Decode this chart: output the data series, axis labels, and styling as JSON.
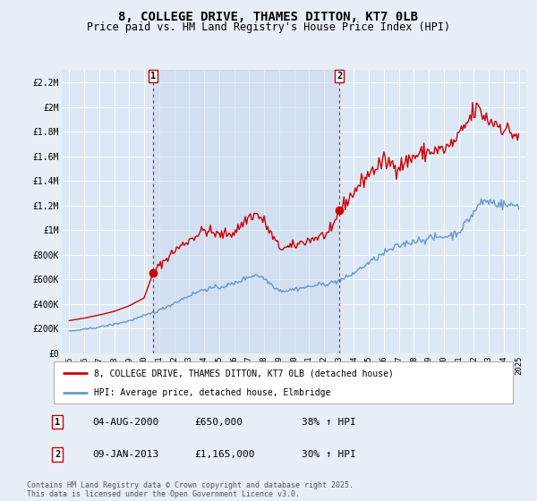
{
  "title": "8, COLLEGE DRIVE, THAMES DITTON, KT7 0LB",
  "subtitle": "Price paid vs. HM Land Registry's House Price Index (HPI)",
  "title_fontsize": 10,
  "subtitle_fontsize": 8.5,
  "background_color": "#e8eef5",
  "plot_bg_color": "#dce8f5",
  "grid_color": "#ffffff",
  "ylim": [
    0,
    2300000
  ],
  "yticks": [
    0,
    200000,
    400000,
    600000,
    800000,
    1000000,
    1200000,
    1400000,
    1600000,
    1800000,
    2000000,
    2200000
  ],
  "ytick_labels": [
    "£0",
    "£200K",
    "£400K",
    "£600K",
    "£800K",
    "£1M",
    "£1.2M",
    "£1.4M",
    "£1.6M",
    "£1.8M",
    "£2M",
    "£2.2M"
  ],
  "red_line_color": "#cc0000",
  "blue_line_color": "#6699cc",
  "marker_color": "#cc0000",
  "dashed_line_color": "#cc0000",
  "shade_color": "#c8d8ee",
  "legend_label_red": "8, COLLEGE DRIVE, THAMES DITTON, KT7 0LB (detached house)",
  "legend_label_blue": "HPI: Average price, detached house, Elmbridge",
  "marker1_x": 2000.583,
  "marker1_y": 650000,
  "marker2_x": 2013.03,
  "marker2_y": 1165000,
  "table_data": [
    [
      "1",
      "04-AUG-2000",
      "£650,000",
      "38% ↑ HPI"
    ],
    [
      "2",
      "09-JAN-2013",
      "£1,165,000",
      "30% ↑ HPI"
    ]
  ],
  "footer": "Contains HM Land Registry data © Crown copyright and database right 2025.\nThis data is licensed under the Open Government Licence v3.0.",
  "xlim": [
    1994.5,
    2025.5
  ],
  "xticks": [
    1995,
    1996,
    1997,
    1998,
    1999,
    2000,
    2001,
    2002,
    2003,
    2004,
    2005,
    2006,
    2007,
    2008,
    2009,
    2010,
    2011,
    2012,
    2013,
    2014,
    2015,
    2016,
    2017,
    2018,
    2019,
    2020,
    2021,
    2022,
    2023,
    2024,
    2025
  ],
  "red_x": [
    1995.0,
    1995.083,
    1995.167,
    1995.25,
    1995.333,
    1995.417,
    1995.5,
    1995.583,
    1995.667,
    1995.75,
    1995.833,
    1995.917,
    1996.0,
    1996.083,
    1996.167,
    1996.25,
    1996.333,
    1996.417,
    1996.5,
    1996.583,
    1996.667,
    1996.75,
    1996.833,
    1996.917,
    1997.0,
    1997.083,
    1997.167,
    1997.25,
    1997.333,
    1997.417,
    1997.5,
    1997.583,
    1997.667,
    1997.75,
    1997.833,
    1997.917,
    1998.0,
    1998.083,
    1998.167,
    1998.25,
    1998.333,
    1998.417,
    1998.5,
    1998.583,
    1998.667,
    1998.75,
    1998.833,
    1998.917,
    1999.0,
    1999.083,
    1999.167,
    1999.25,
    1999.333,
    1999.417,
    1999.5,
    1999.583,
    1999.667,
    1999.75,
    1999.833,
    1999.917,
    2000.0,
    2000.083,
    2000.167,
    2000.25,
    2000.333,
    2000.417,
    2000.5,
    2000.583,
    2000.667,
    2000.75,
    2000.833,
    2000.917,
    2001.0,
    2001.083,
    2001.167,
    2001.25,
    2001.333,
    2001.417,
    2001.5,
    2001.583,
    2001.667,
    2001.75,
    2001.833,
    2001.917,
    2002.0,
    2002.083,
    2002.167,
    2002.25,
    2002.333,
    2002.417,
    2002.5,
    2002.583,
    2002.667,
    2002.75,
    2002.833,
    2002.917,
    2003.0,
    2003.083,
    2003.167,
    2003.25,
    2003.333,
    2003.417,
    2003.5,
    2003.583,
    2003.667,
    2003.75,
    2003.833,
    2003.917,
    2004.0,
    2004.083,
    2004.167,
    2004.25,
    2004.333,
    2004.417,
    2004.5,
    2004.583,
    2004.667,
    2004.75,
    2004.833,
    2004.917,
    2005.0,
    2005.083,
    2005.167,
    2005.25,
    2005.333,
    2005.417,
    2005.5,
    2005.583,
    2005.667,
    2005.75,
    2005.833,
    2005.917,
    2006.0,
    2006.083,
    2006.167,
    2006.25,
    2006.333,
    2006.417,
    2006.5,
    2006.583,
    2006.667,
    2006.75,
    2006.833,
    2006.917,
    2007.0,
    2007.083,
    2007.167,
    2007.25,
    2007.333,
    2007.417,
    2007.5,
    2007.583,
    2007.667,
    2007.75,
    2007.833,
    2007.917,
    2008.0,
    2008.083,
    2008.167,
    2008.25,
    2008.333,
    2008.417,
    2008.5,
    2008.583,
    2008.667,
    2008.75,
    2008.833,
    2008.917,
    2009.0,
    2009.083,
    2009.167,
    2009.25,
    2009.333,
    2009.417,
    2009.5,
    2009.583,
    2009.667,
    2009.75,
    2009.833,
    2009.917,
    2010.0,
    2010.083,
    2010.167,
    2010.25,
    2010.333,
    2010.417,
    2010.5,
    2010.583,
    2010.667,
    2010.75,
    2010.833,
    2010.917,
    2011.0,
    2011.083,
    2011.167,
    2011.25,
    2011.333,
    2011.417,
    2011.5,
    2011.583,
    2011.667,
    2011.75,
    2011.833,
    2011.917,
    2012.0,
    2012.083,
    2012.167,
    2012.25,
    2012.333,
    2012.417,
    2012.5,
    2012.583,
    2012.667,
    2012.75,
    2012.833,
    2012.917,
    2013.0,
    2013.083,
    2013.167,
    2013.25,
    2013.333,
    2013.417,
    2013.5,
    2013.583,
    2013.667,
    2013.75,
    2013.833,
    2013.917,
    2014.0,
    2014.083,
    2014.167,
    2014.25,
    2014.333,
    2014.417,
    2014.5,
    2014.583,
    2014.667,
    2014.75,
    2014.833,
    2014.917,
    2015.0,
    2015.083,
    2015.167,
    2015.25,
    2015.333,
    2015.417,
    2015.5,
    2015.583,
    2015.667,
    2015.75,
    2015.833,
    2015.917,
    2016.0,
    2016.083,
    2016.167,
    2016.25,
    2016.333,
    2016.417,
    2016.5,
    2016.583,
    2016.667,
    2016.75,
    2016.833,
    2016.917,
    2017.0,
    2017.083,
    2017.167,
    2017.25,
    2017.333,
    2017.417,
    2017.5,
    2017.583,
    2017.667,
    2017.75,
    2017.833,
    2017.917,
    2018.0,
    2018.083,
    2018.167,
    2018.25,
    2018.333,
    2018.417,
    2018.5,
    2018.583,
    2018.667,
    2018.75,
    2018.833,
    2018.917,
    2019.0,
    2019.083,
    2019.167,
    2019.25,
    2019.333,
    2019.417,
    2019.5,
    2019.583,
    2019.667,
    2019.75,
    2019.833,
    2019.917,
    2020.0,
    2020.083,
    2020.167,
    2020.25,
    2020.333,
    2020.417,
    2020.5,
    2020.583,
    2020.667,
    2020.75,
    2020.833,
    2020.917,
    2021.0,
    2021.083,
    2021.167,
    2021.25,
    2021.333,
    2021.417,
    2021.5,
    2021.583,
    2021.667,
    2021.75,
    2021.833,
    2021.917,
    2022.0,
    2022.083,
    2022.167,
    2022.25,
    2022.333,
    2022.417,
    2022.5,
    2022.583,
    2022.667,
    2022.75,
    2022.833,
    2022.917,
    2023.0,
    2023.083,
    2023.167,
    2023.25,
    2023.333,
    2023.417,
    2023.5,
    2023.583,
    2023.667,
    2023.75,
    2023.833,
    2023.917,
    2024.0,
    2024.083,
    2024.167,
    2024.25,
    2024.333,
    2024.417,
    2024.5,
    2024.583,
    2024.667,
    2024.75,
    2024.833,
    2024.917,
    2025.0
  ],
  "blue_x": [
    1995.0,
    1995.083,
    1995.167,
    1995.25,
    1995.333,
    1995.417,
    1995.5,
    1995.583,
    1995.667,
    1995.75,
    1995.833,
    1995.917,
    1996.0,
    1996.083,
    1996.167,
    1996.25,
    1996.333,
    1996.417,
    1996.5,
    1996.583,
    1996.667,
    1996.75,
    1996.833,
    1996.917,
    1997.0,
    1997.083,
    1997.167,
    1997.25,
    1997.333,
    1997.417,
    1997.5,
    1997.583,
    1997.667,
    1997.75,
    1997.833,
    1997.917,
    1998.0,
    1998.083,
    1998.167,
    1998.25,
    1998.333,
    1998.417,
    1998.5,
    1998.583,
    1998.667,
    1998.75,
    1998.833,
    1998.917,
    1999.0,
    1999.083,
    1999.167,
    1999.25,
    1999.333,
    1999.417,
    1999.5,
    1999.583,
    1999.667,
    1999.75,
    1999.833,
    1999.917,
    2000.0,
    2000.083,
    2000.167,
    2000.25,
    2000.333,
    2000.417,
    2000.5,
    2000.583,
    2000.667,
    2000.75,
    2000.833,
    2000.917,
    2001.0,
    2001.083,
    2001.167,
    2001.25,
    2001.333,
    2001.417,
    2001.5,
    2001.583,
    2001.667,
    2001.75,
    2001.833,
    2001.917,
    2002.0,
    2002.083,
    2002.167,
    2002.25,
    2002.333,
    2002.417,
    2002.5,
    2002.583,
    2002.667,
    2002.75,
    2002.833,
    2002.917,
    2003.0,
    2003.083,
    2003.167,
    2003.25,
    2003.333,
    2003.417,
    2003.5,
    2003.583,
    2003.667,
    2003.75,
    2003.833,
    2003.917,
    2004.0,
    2004.083,
    2004.167,
    2004.25,
    2004.333,
    2004.417,
    2004.5,
    2004.583,
    2004.667,
    2004.75,
    2004.833,
    2004.917,
    2005.0,
    2005.083,
    2005.167,
    2005.25,
    2005.333,
    2005.417,
    2005.5,
    2005.583,
    2005.667,
    2005.75,
    2005.833,
    2005.917,
    2006.0,
    2006.083,
    2006.167,
    2006.25,
    2006.333,
    2006.417,
    2006.5,
    2006.583,
    2006.667,
    2006.75,
    2006.833,
    2006.917,
    2007.0,
    2007.083,
    2007.167,
    2007.25,
    2007.333,
    2007.417,
    2007.5,
    2007.583,
    2007.667,
    2007.75,
    2007.833,
    2007.917,
    2008.0,
    2008.083,
    2008.167,
    2008.25,
    2008.333,
    2008.417,
    2008.5,
    2008.583,
    2008.667,
    2008.75,
    2008.833,
    2008.917,
    2009.0,
    2009.083,
    2009.167,
    2009.25,
    2009.333,
    2009.417,
    2009.5,
    2009.583,
    2009.667,
    2009.75,
    2009.833,
    2009.917,
    2010.0,
    2010.083,
    2010.167,
    2010.25,
    2010.333,
    2010.417,
    2010.5,
    2010.583,
    2010.667,
    2010.75,
    2010.833,
    2010.917,
    2011.0,
    2011.083,
    2011.167,
    2011.25,
    2011.333,
    2011.417,
    2011.5,
    2011.583,
    2011.667,
    2011.75,
    2011.833,
    2011.917,
    2012.0,
    2012.083,
    2012.167,
    2012.25,
    2012.333,
    2012.417,
    2012.5,
    2012.583,
    2012.667,
    2012.75,
    2012.833,
    2012.917,
    2013.0,
    2013.083,
    2013.167,
    2013.25,
    2013.333,
    2013.417,
    2013.5,
    2013.583,
    2013.667,
    2013.75,
    2013.833,
    2013.917,
    2014.0,
    2014.083,
    2014.167,
    2014.25,
    2014.333,
    2014.417,
    2014.5,
    2014.583,
    2014.667,
    2014.75,
    2014.833,
    2014.917,
    2015.0,
    2015.083,
    2015.167,
    2015.25,
    2015.333,
    2015.417,
    2015.5,
    2015.583,
    2015.667,
    2015.75,
    2015.833,
    2015.917,
    2016.0,
    2016.083,
    2016.167,
    2016.25,
    2016.333,
    2016.417,
    2016.5,
    2016.583,
    2016.667,
    2016.75,
    2016.833,
    2016.917,
    2017.0,
    2017.083,
    2017.167,
    2017.25,
    2017.333,
    2017.417,
    2017.5,
    2017.583,
    2017.667,
    2017.75,
    2017.833,
    2017.917,
    2018.0,
    2018.083,
    2018.167,
    2018.25,
    2018.333,
    2018.417,
    2018.5,
    2018.583,
    2018.667,
    2018.75,
    2018.833,
    2018.917,
    2019.0,
    2019.083,
    2019.167,
    2019.25,
    2019.333,
    2019.417,
    2019.5,
    2019.583,
    2019.667,
    2019.75,
    2019.833,
    2019.917,
    2020.0,
    2020.083,
    2020.167,
    2020.25,
    2020.333,
    2020.417,
    2020.5,
    2020.583,
    2020.667,
    2020.75,
    2020.833,
    2020.917,
    2021.0,
    2021.083,
    2021.167,
    2021.25,
    2021.333,
    2021.417,
    2021.5,
    2021.583,
    2021.667,
    2021.75,
    2021.833,
    2021.917,
    2022.0,
    2022.083,
    2022.167,
    2022.25,
    2022.333,
    2022.417,
    2022.5,
    2022.583,
    2022.667,
    2022.75,
    2022.833,
    2022.917,
    2023.0,
    2023.083,
    2023.167,
    2023.25,
    2023.333,
    2023.417,
    2023.5,
    2023.583,
    2023.667,
    2023.75,
    2023.833,
    2023.917,
    2024.0,
    2024.083,
    2024.167,
    2024.25,
    2024.333,
    2024.417,
    2024.5,
    2024.583,
    2024.667,
    2024.75,
    2024.833,
    2024.917,
    2025.0
  ]
}
